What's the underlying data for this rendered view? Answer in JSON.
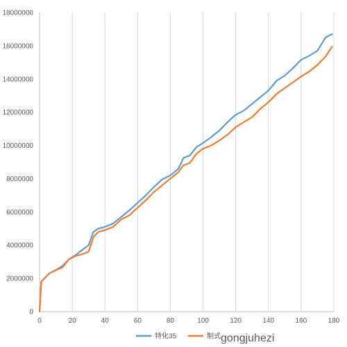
{
  "chart_data": {
    "type": "line",
    "title": "",
    "xlabel": "",
    "ylabel": "",
    "xlim": [
      0,
      180
    ],
    "ylim": [
      0,
      18000000
    ],
    "x_ticks": [
      0,
      20,
      40,
      60,
      80,
      100,
      120,
      140,
      160,
      180
    ],
    "x_tick_labels": [
      "0",
      "20",
      "40",
      "60",
      "80",
      "100",
      "120",
      "140",
      "160",
      "180"
    ],
    "y_ticks": [
      0,
      2000000,
      4000000,
      6000000,
      8000000,
      10000000,
      12000000,
      14000000,
      16000000,
      18000000
    ],
    "y_tick_labels": [
      "0",
      "2000000",
      "4000000",
      "6000000",
      "8000000",
      "10000000",
      "12000000",
      "14000000",
      "16000000",
      "18000000"
    ],
    "grid": "vertical",
    "legend_position": "bottom",
    "series": [
      {
        "name": "特化35",
        "color": "#5b9bd5",
        "x": [
          0,
          1,
          3,
          6,
          10,
          14,
          18,
          22,
          26,
          30,
          33,
          36,
          40,
          45,
          50,
          55,
          60,
          65,
          70,
          75,
          80,
          85,
          88,
          92,
          96,
          100,
          105,
          110,
          115,
          120,
          125,
          130,
          135,
          140,
          145,
          150,
          155,
          160,
          165,
          170,
          175,
          179
        ],
        "values": [
          0,
          1800000,
          2000000,
          2300000,
          2500000,
          2750000,
          3150000,
          3400000,
          3700000,
          4000000,
          4800000,
          5000000,
          5100000,
          5300000,
          5700000,
          6100000,
          6550000,
          7000000,
          7500000,
          7950000,
          8200000,
          8600000,
          9250000,
          9400000,
          9900000,
          10150000,
          10500000,
          10900000,
          11400000,
          11850000,
          12100000,
          12500000,
          12900000,
          13300000,
          13900000,
          14200000,
          14650000,
          15150000,
          15400000,
          15700000,
          16500000,
          16700000
        ]
      },
      {
        "name": "制式",
        "color": "#ed7d31",
        "x": [
          0,
          1,
          3,
          6,
          10,
          14,
          18,
          22,
          26,
          30,
          33,
          36,
          40,
          45,
          50,
          55,
          60,
          65,
          70,
          75,
          80,
          85,
          88,
          92,
          96,
          100,
          105,
          110,
          115,
          120,
          125,
          130,
          135,
          140,
          145,
          150,
          155,
          160,
          165,
          170,
          175,
          179
        ],
        "values": [
          0,
          1800000,
          2000000,
          2300000,
          2500000,
          2650000,
          3150000,
          3350000,
          3450000,
          3600000,
          4500000,
          4800000,
          4900000,
          5100000,
          5550000,
          5800000,
          6250000,
          6700000,
          7200000,
          7600000,
          8000000,
          8400000,
          8800000,
          8950000,
          9500000,
          9800000,
          10000000,
          10300000,
          10650000,
          11100000,
          11400000,
          11700000,
          12200000,
          12600000,
          13100000,
          13450000,
          13800000,
          14150000,
          14450000,
          14850000,
          15350000,
          15950000
        ]
      }
    ]
  },
  "watermark": "gongjuhezi"
}
